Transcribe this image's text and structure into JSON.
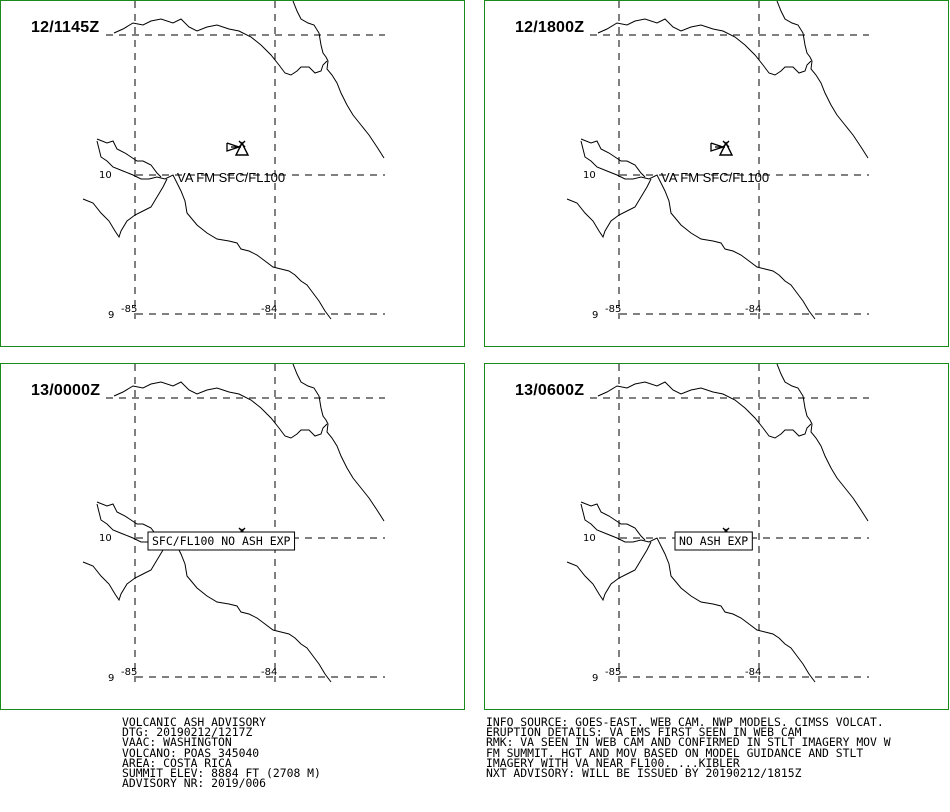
{
  "panels": [
    {
      "time": "12/1145Z",
      "label": "VA FM SFC/FL100",
      "boxed": false,
      "arrows": true
    },
    {
      "time": "12/1800Z",
      "label": "VA FM SFC/FL100",
      "boxed": false,
      "arrows": true
    },
    {
      "time": "13/0000Z",
      "label": "SFC/FL100 NO ASH EXP",
      "boxed": true,
      "arrows": false
    },
    {
      "time": "13/0600Z",
      "label": "NO ASH EXP",
      "boxed": true,
      "arrows": false
    }
  ],
  "map_labels": {
    "lat_10": "10",
    "lat_9": "9",
    "lon_85": "-85",
    "lon_84": "-84"
  },
  "advisory_left": [
    "VOLCANIC ASH ADVISORY",
    "DTG: 20190212/1217Z",
    "VAAC: WASHINGTON",
    "VOLCANO: POAS 345040",
    "AREA: COSTA RICA",
    "SUMMIT ELEV: 8884 FT (2708 M)",
    "ADVISORY NR: 2019/006"
  ],
  "advisory_right": [
    "INFO SOURCE: GOES-EAST. WEB CAM. NWP MODELS. CIMSS VOLCAT.",
    "ERUPTION DETAILS: VA EMS FIRST SEEN IN WEB CAM",
    "RMK: VA SEEN IN WEB CAM AND CONFIRMED IN STLT IMAGERY MOV W",
    "FM SUMMIT. HGT AND MOV BASED ON MODEL GUIDANCE AND STLT",
    "IMAGERY WITH VA NEAR FL100. ...KIBLER",
    "NXT ADVISORY: WILL BE ISSUED BY 20190212/1815Z"
  ],
  "colors": {
    "panel_border": "#1a8a1a",
    "ink": "#000000"
  }
}
